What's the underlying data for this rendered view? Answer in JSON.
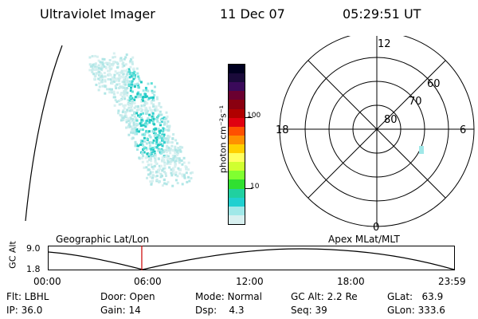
{
  "header": {
    "instrument": "Ultraviolet Imager",
    "date": "11 Dec 07",
    "time": "05:29:51 UT"
  },
  "colorbar": {
    "label": "photon cm⁻²s⁻¹",
    "ticks": [
      "100",
      "10"
    ],
    "colors": [
      "#000020",
      "#1a0a3a",
      "#3a0a5a",
      "#6a0030",
      "#8a0010",
      "#b00000",
      "#e00010",
      "#ff5000",
      "#ff9000",
      "#ffd000",
      "#ffff60",
      "#d0ff30",
      "#80ff30",
      "#30e030",
      "#20d0a0",
      "#20d0d0",
      "#a0e8e8",
      "#d8f0f0"
    ]
  },
  "polar_plot": {
    "mlt_labels": {
      "top": "12",
      "bottom": "0",
      "left": "18",
      "right": "6"
    },
    "lat_labels": [
      "60",
      "70",
      "80"
    ]
  },
  "timeline": {
    "left_title": "Geographic Lat/Lon",
    "right_title": "Apex MLat/MLT",
    "y_axis_label": "GC Alt",
    "y_ticks": [
      "9.0",
      "1.8"
    ],
    "x_ticks": [
      "00:00",
      "06:00",
      "12:00",
      "18:00",
      "23:59"
    ],
    "current_time_fraction": 0.2298,
    "marker_color": "#cc0000"
  },
  "info": {
    "flt": "Flt: LBHL",
    "ip": "IP: 36.0",
    "door": "Door: Open",
    "gain": "Gain: 14",
    "mode": "Mode: Normal",
    "dsp": "Dsp:    4.3",
    "gc_alt": "GC Alt: 2.2 Re",
    "seq": "Seq: 39",
    "glat": "GLat:   63.9",
    "glon": "GLon: 333.6"
  }
}
